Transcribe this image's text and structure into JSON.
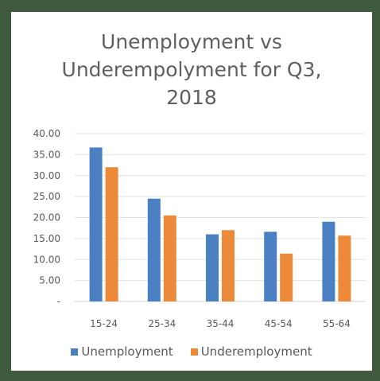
{
  "chart_data": {
    "type": "bar",
    "title_lines": [
      "Unemployment vs",
      "Underempolyment for Q3,",
      "2018"
    ],
    "categories": [
      "15-24",
      "25-34",
      "35-44",
      "45-54",
      "55-64"
    ],
    "series": [
      {
        "name": "Unemployment",
        "color": "#4a7fc1",
        "values": [
          36.7,
          24.5,
          16.0,
          16.6,
          19.0
        ]
      },
      {
        "name": "Underemployment",
        "color": "#ed8a3a",
        "values": [
          32.0,
          20.5,
          17.0,
          11.4,
          15.7
        ]
      }
    ],
    "yticks": [
      "-",
      "5.00",
      "10.00",
      "15.00",
      "20.00",
      "25.00",
      "30.00",
      "35.00",
      "40.00"
    ],
    "ylim": [
      0,
      40
    ],
    "grid": true,
    "legend_position": "bottom"
  }
}
